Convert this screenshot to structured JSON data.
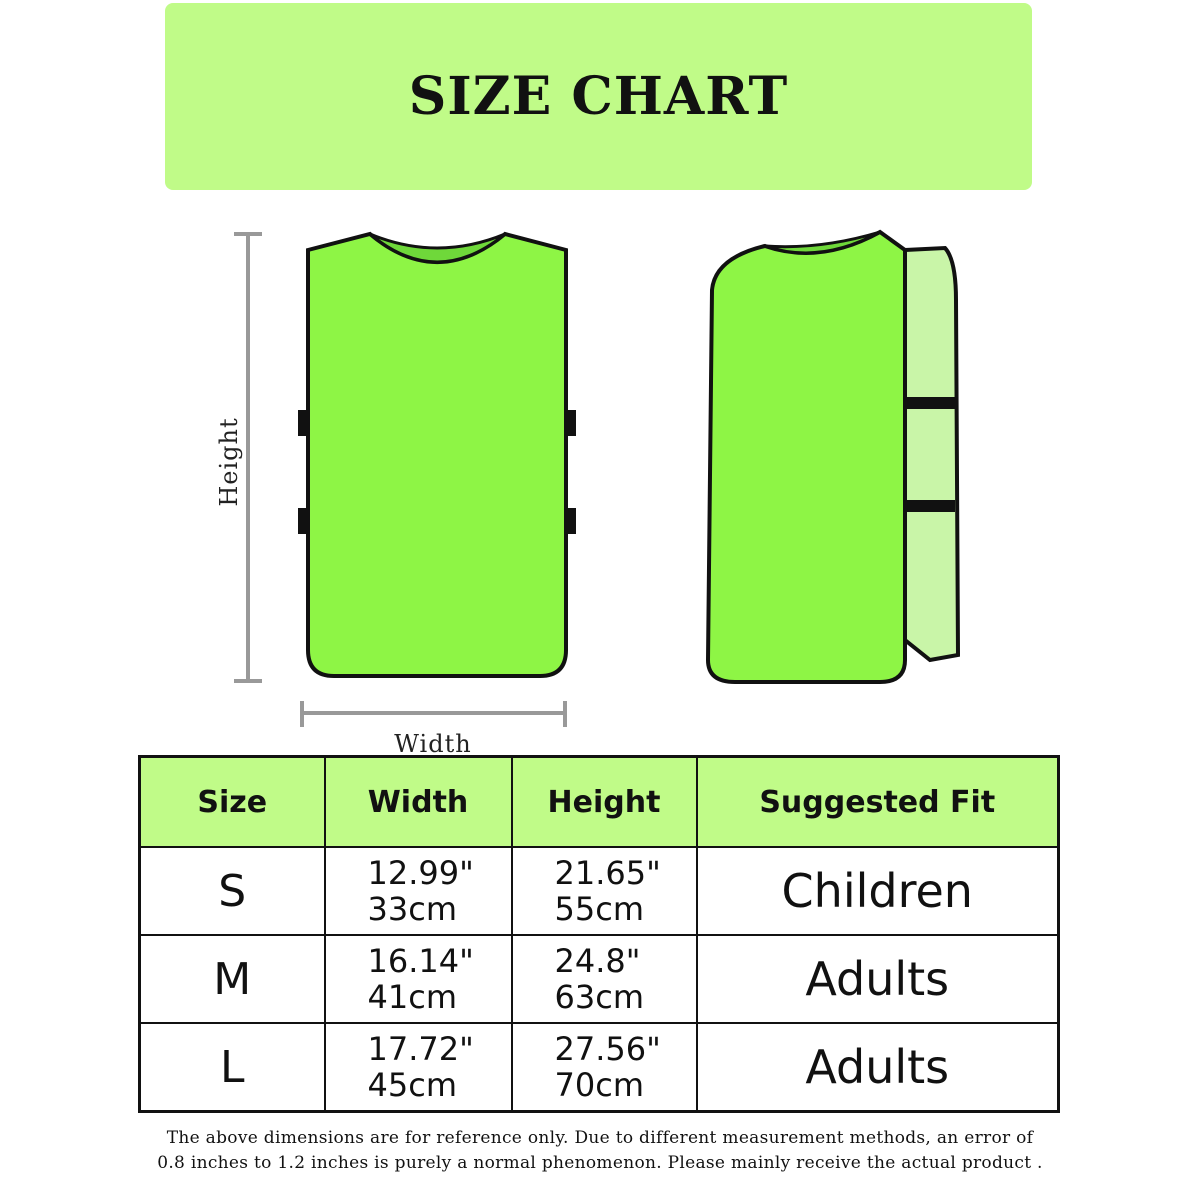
{
  "banner": {
    "title": "SIZE CHART",
    "color": "#c0fb88"
  },
  "diagram": {
    "height_label": "Height",
    "width_label": "Width",
    "vest_color": "#8ef545"
  },
  "table": {
    "headers": [
      "Size",
      "Width",
      "Height",
      "Suggested Fit"
    ],
    "rows": [
      {
        "size": "S",
        "width_in": "12.99\"",
        "width_cm": "33cm",
        "height_in": "21.65\"",
        "height_cm": "55cm",
        "fit": "Children"
      },
      {
        "size": "M",
        "width_in": "16.14\"",
        "width_cm": "41cm",
        "height_in": "24.8\"",
        "height_cm": "63cm",
        "fit": "Adults"
      },
      {
        "size": "L",
        "width_in": "17.72\"",
        "width_cm": "45cm",
        "height_in": "27.56\"",
        "height_cm": "70cm",
        "fit": "Adults"
      }
    ]
  },
  "note": {
    "line1": "The above dimensions are for reference only. Due to different measurement methods, an error of",
    "line2": "0.8 inches to 1.2 inches is purely a normal phenomenon. Please mainly receive the actual product ."
  }
}
